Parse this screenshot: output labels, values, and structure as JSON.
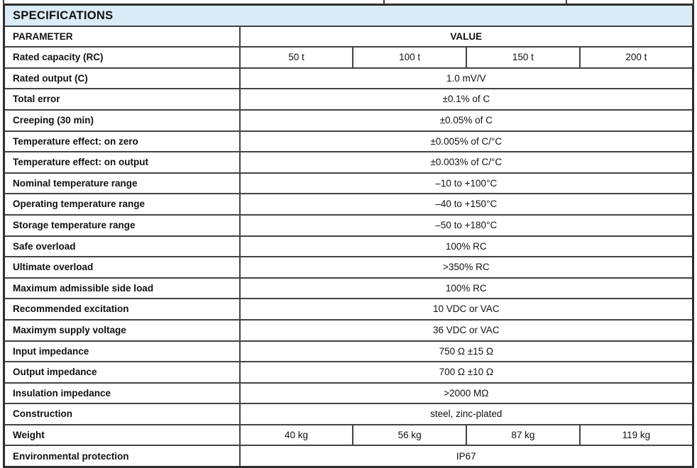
{
  "table": {
    "title": "SPECIFICATIONS",
    "columns": {
      "parameter": "PARAMETER",
      "value": "VALUE"
    },
    "rows": [
      {
        "parameter": "Rated capacity (RC)",
        "values": [
          "50 t",
          "100 t",
          "150 t",
          "200 t"
        ]
      },
      {
        "parameter": "Rated output (C)",
        "values": [
          "1.0 mV/V"
        ]
      },
      {
        "parameter": "Total error",
        "values": [
          "±0.1% of C"
        ]
      },
      {
        "parameter": "Creeping (30 min)",
        "values": [
          "±0.05% of C"
        ]
      },
      {
        "parameter": "Temperature effect: on zero",
        "values": [
          "±0.005% of C/°C"
        ]
      },
      {
        "parameter": "Temperature effect: on output",
        "values": [
          "±0.003% of C/°C"
        ]
      },
      {
        "parameter": "Nominal temperature range",
        "values": [
          "–10 to +100°C"
        ]
      },
      {
        "parameter": "Operating temperature range",
        "values": [
          "–40 to +150°C"
        ]
      },
      {
        "parameter": "Storage temperature range",
        "values": [
          "–50 to +180°C"
        ]
      },
      {
        "parameter": "Safe overload",
        "values": [
          "100% RC"
        ]
      },
      {
        "parameter": "Ultimate overload",
        "values": [
          ">350% RC"
        ]
      },
      {
        "parameter": "Maximum admissible side load",
        "values": [
          "100% RC"
        ]
      },
      {
        "parameter": "Recommended excitation",
        "values": [
          "10 VDC or VAC"
        ]
      },
      {
        "parameter": "Maximym supply voltage",
        "values": [
          "36 VDC or VAC"
        ]
      },
      {
        "parameter": "Input impedance",
        "values": [
          "750 Ω ±15 Ω"
        ]
      },
      {
        "parameter": "Output impedance",
        "values": [
          "700 Ω ±10 Ω"
        ]
      },
      {
        "parameter": "Insulation impedance",
        "values": [
          ">2000 MΩ"
        ]
      },
      {
        "parameter": "Construction",
        "values": [
          "steel, zinc-plated"
        ]
      },
      {
        "parameter": "Weight",
        "values": [
          "40 kg",
          "56 kg",
          "87 kg",
          "119 kg"
        ]
      },
      {
        "parameter": "Environmental protection",
        "values": [
          "IP67"
        ]
      }
    ],
    "colors": {
      "title_bg": "#daecf8",
      "border": "#434343",
      "text": "#111111"
    }
  }
}
